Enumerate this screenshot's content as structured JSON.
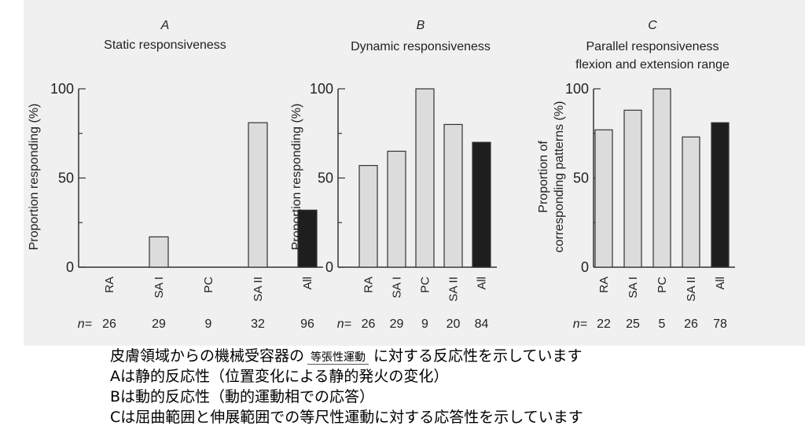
{
  "chart_data": [
    {
      "type": "bar",
      "panel": "A",
      "title": "Static responsiveness",
      "ylabel": "Proportion responding (%)",
      "ylim": [
        0,
        100
      ],
      "yticks": [
        "0",
        "50",
        "100"
      ],
      "categories": [
        "RA",
        "SA I",
        "PC",
        "SA II",
        "All"
      ],
      "n_label": "n=",
      "n": [
        "26",
        "29",
        "9",
        "32",
        "96"
      ],
      "values": [
        0,
        17,
        0,
        81,
        32
      ],
      "colors": [
        "#dcdcdc",
        "#dcdcdc",
        "#dcdcdc",
        "#dcdcdc",
        "#1e1e1e"
      ]
    },
    {
      "type": "bar",
      "panel": "B",
      "title": "Dynamic responsiveness",
      "ylabel": "Proportion responding (%)",
      "ylim": [
        0,
        100
      ],
      "yticks": [
        "0",
        "50",
        "100"
      ],
      "categories": [
        "RA",
        "SA I",
        "PC",
        "SA II",
        "All"
      ],
      "n_label": "n=",
      "n": [
        "26",
        "29",
        "9",
        "20",
        "84"
      ],
      "values": [
        57,
        65,
        100,
        80,
        70
      ],
      "colors": [
        "#dcdcdc",
        "#dcdcdc",
        "#dcdcdc",
        "#dcdcdc",
        "#1e1e1e"
      ]
    },
    {
      "type": "bar",
      "panel": "C",
      "title": "Parallel responsiveness",
      "subtitle": "flexion and extension range",
      "ylabel": "Proportion of",
      "ylabel2": "corresponding patterns (%)",
      "ylim": [
        0,
        100
      ],
      "yticks": [
        "0",
        "50",
        "100"
      ],
      "categories": [
        "RA",
        "SA I",
        "PC",
        "SA II",
        "All"
      ],
      "n_label": "n=",
      "n": [
        "22",
        "25",
        "5",
        "26",
        "78"
      ],
      "values": [
        77,
        88,
        100,
        73,
        81
      ],
      "colors": [
        "#dcdcdc",
        "#dcdcdc",
        "#dcdcdc",
        "#dcdcdc",
        "#1e1e1e"
      ]
    }
  ],
  "caption": {
    "line1_a": "皮膚領域からの機械受容器の",
    "line1_box": "等張性運動",
    "line1_b": "に対する反応性を示しています",
    "line2": "Aは静的反応性（位置変化による静的発火の変化）",
    "line3": "Bは動的反応性（動的運動相での応答）",
    "line4": "Cは屈曲範囲と伸展範囲での等尺性運動に対する応答性を示しています"
  }
}
